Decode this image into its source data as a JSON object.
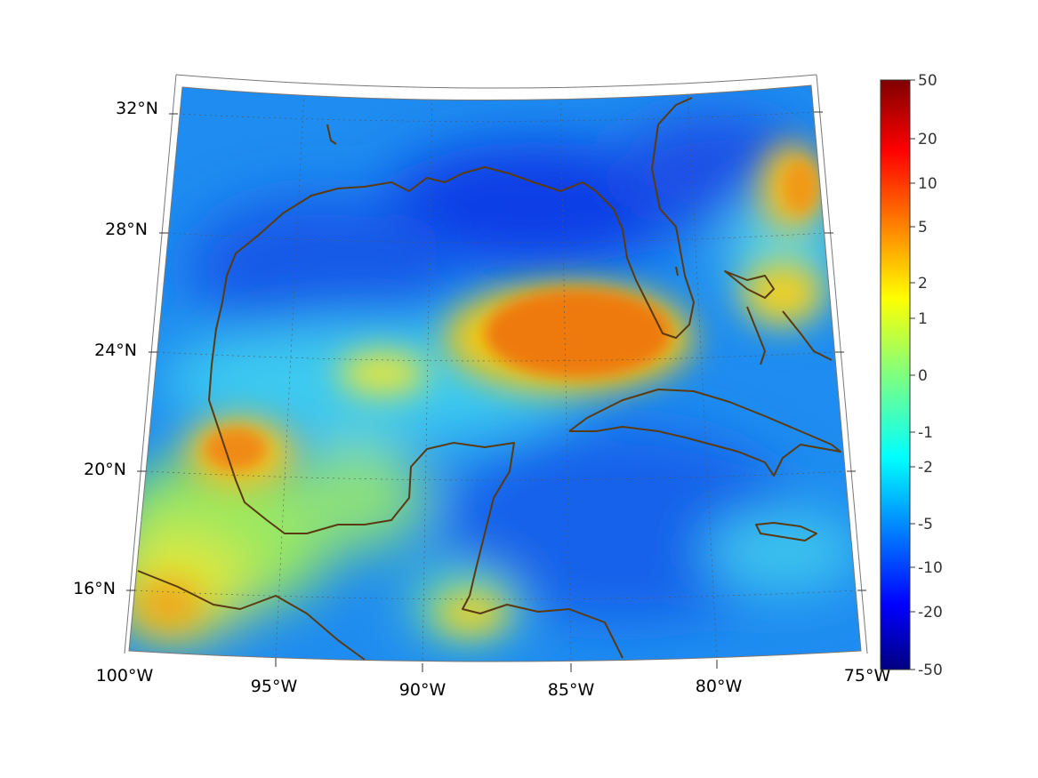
{
  "map": {
    "projection": "conic",
    "lon_range": [
      -100,
      -75
    ],
    "lat_range": [
      14,
      33
    ],
    "lon_tick_labels": [
      "100°W",
      "95°W",
      "90°W",
      "85°W",
      "80°W",
      "75°W"
    ],
    "lat_tick_labels": [
      "32°N",
      "28°N",
      "24°N",
      "20°N",
      "16°N"
    ],
    "coastline_color": "#5a3a10",
    "grid": true
  },
  "colorbar": {
    "colormap": "jet",
    "scale": "symmetric-log",
    "tick_labels": [
      "50",
      "20",
      "10",
      "5",
      "2",
      "1",
      "0",
      "-1",
      "-2",
      "-5",
      "-10",
      "-20",
      "-50"
    ]
  }
}
